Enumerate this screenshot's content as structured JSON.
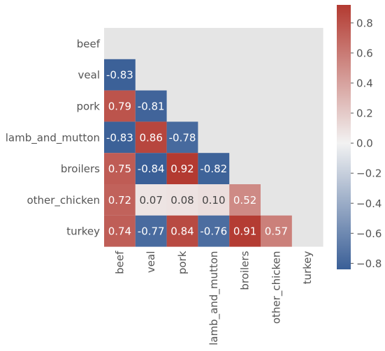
{
  "chart_data": {
    "type": "heatmap",
    "title": "",
    "xlabel": "",
    "ylabel": "",
    "rows": [
      "beef",
      "veal",
      "pork",
      "lamb_and_mutton",
      "broilers",
      "other_chicken",
      "turkey"
    ],
    "columns": [
      "beef",
      "veal",
      "pork",
      "lamb_and_mutton",
      "broilers",
      "other_chicken",
      "turkey"
    ],
    "mask": "upper-triangle-including-diagonal",
    "values": [
      [
        null,
        null,
        null,
        null,
        null,
        null,
        null
      ],
      [
        -0.83,
        null,
        null,
        null,
        null,
        null,
        null
      ],
      [
        0.79,
        -0.81,
        null,
        null,
        null,
        null,
        null
      ],
      [
        -0.83,
        0.86,
        -0.78,
        null,
        null,
        null,
        null
      ],
      [
        0.75,
        -0.84,
        0.92,
        -0.82,
        null,
        null,
        null
      ],
      [
        0.72,
        0.07,
        0.08,
        0.1,
        0.52,
        null,
        null
      ],
      [
        0.74,
        -0.77,
        0.84,
        -0.76,
        0.91,
        0.57,
        null
      ]
    ],
    "cell_labels": [
      [
        "",
        "",
        "",
        "",
        "",
        "",
        ""
      ],
      [
        "-0.83",
        "",
        "",
        "",
        "",
        "",
        ""
      ],
      [
        "0.79",
        "-0.81",
        "",
        "",
        "",
        "",
        ""
      ],
      [
        "-0.83",
        "0.86",
        "-0.78",
        "",
        "",
        "",
        ""
      ],
      [
        "0.75",
        "-0.84",
        "0.92",
        "-0.82",
        "",
        "",
        ""
      ],
      [
        "0.72",
        "0.07",
        "0.08",
        "0.10",
        "0.52",
        "",
        ""
      ],
      [
        "0.74",
        "-0.77",
        "0.84",
        "-0.76",
        "0.91",
        "0.57",
        ""
      ]
    ],
    "colorbar": {
      "range": [
        -0.84,
        0.92
      ],
      "ticks": [
        -0.8,
        -0.6,
        -0.4,
        -0.2,
        0.0,
        0.2,
        0.4,
        0.6,
        0.8
      ],
      "tick_labels": [
        "−0.8",
        "−0.6",
        "−0.4",
        "−0.2",
        "0.0",
        "0.2",
        "0.4",
        "0.6",
        "0.8"
      ],
      "placement": "right"
    },
    "colors": {
      "low": "#3a5f97",
      "mid": "#f2f2f2",
      "high": "#b33a31",
      "background": "#e5e5e5",
      "text_light": "#ffffff",
      "text_dark": "#444444",
      "tick_text": "#555555"
    },
    "grid": false
  }
}
